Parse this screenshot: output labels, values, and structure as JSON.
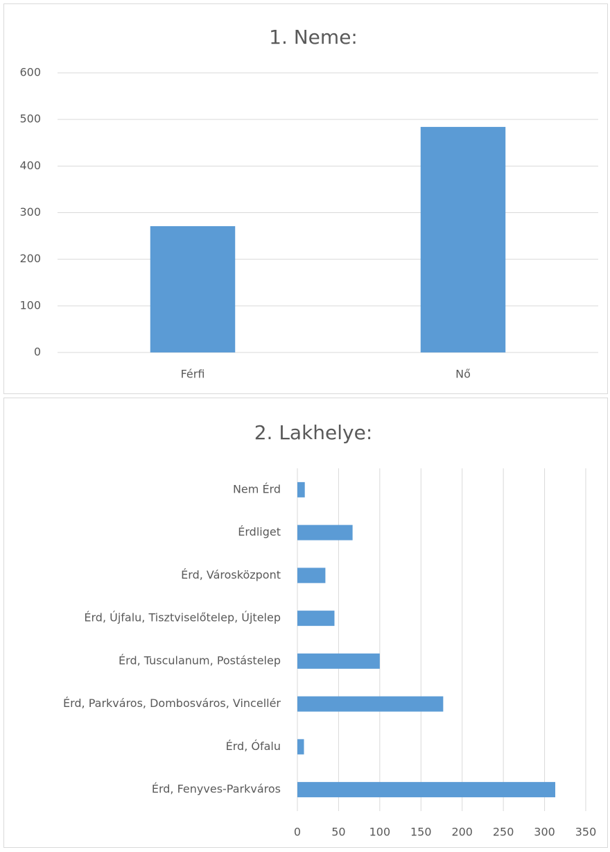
{
  "chart_data": [
    {
      "type": "bar",
      "title": "1. Neme:",
      "categories": [
        "Férfi",
        "Nő"
      ],
      "values": [
        271,
        484
      ],
      "color": "#5b9bd5",
      "ylim": [
        0,
        600
      ],
      "yticks": [
        0,
        100,
        200,
        300,
        400,
        500,
        600
      ],
      "grid": true
    },
    {
      "type": "hbar",
      "title": "2. Lakhelye:",
      "categories": [
        "Nem Érd",
        "Érdliget",
        "Érd, Városközpont",
        "Érd, Újfalu, Tisztviselőtelep, Újtelep",
        "Érd, Tusculanum, Postástelep",
        "Érd, Parkváros, Dombosváros, Vincellér",
        "Érd, Ófalu",
        "Érd, Fenyves-Parkváros"
      ],
      "values": [
        9,
        67,
        34,
        45,
        100,
        177,
        8,
        313
      ],
      "color": "#5b9bd5",
      "xlim": [
        0,
        350
      ],
      "xticks": [
        0,
        50,
        100,
        150,
        200,
        250,
        300,
        350
      ],
      "grid": true
    }
  ]
}
